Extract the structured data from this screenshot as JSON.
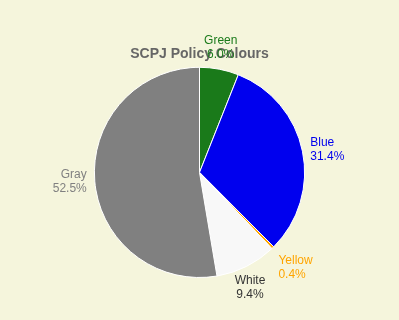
{
  "chart_data": {
    "type": "pie",
    "title": "SCPJ Policy Colours",
    "categories": [
      "Green",
      "Blue",
      "Yellow",
      "White",
      "Gray"
    ],
    "values": [
      6.0,
      31.4,
      0.4,
      9.4,
      52.5
    ],
    "value_labels": [
      "6.0%",
      "31.4%",
      "0.4%",
      "9.4%",
      "52.5%"
    ],
    "colors": [
      "#1a7a1a",
      "#0000ee",
      "#ffa500",
      "#f8f8f8",
      "#808080"
    ],
    "data_labels": true,
    "legend": false
  }
}
